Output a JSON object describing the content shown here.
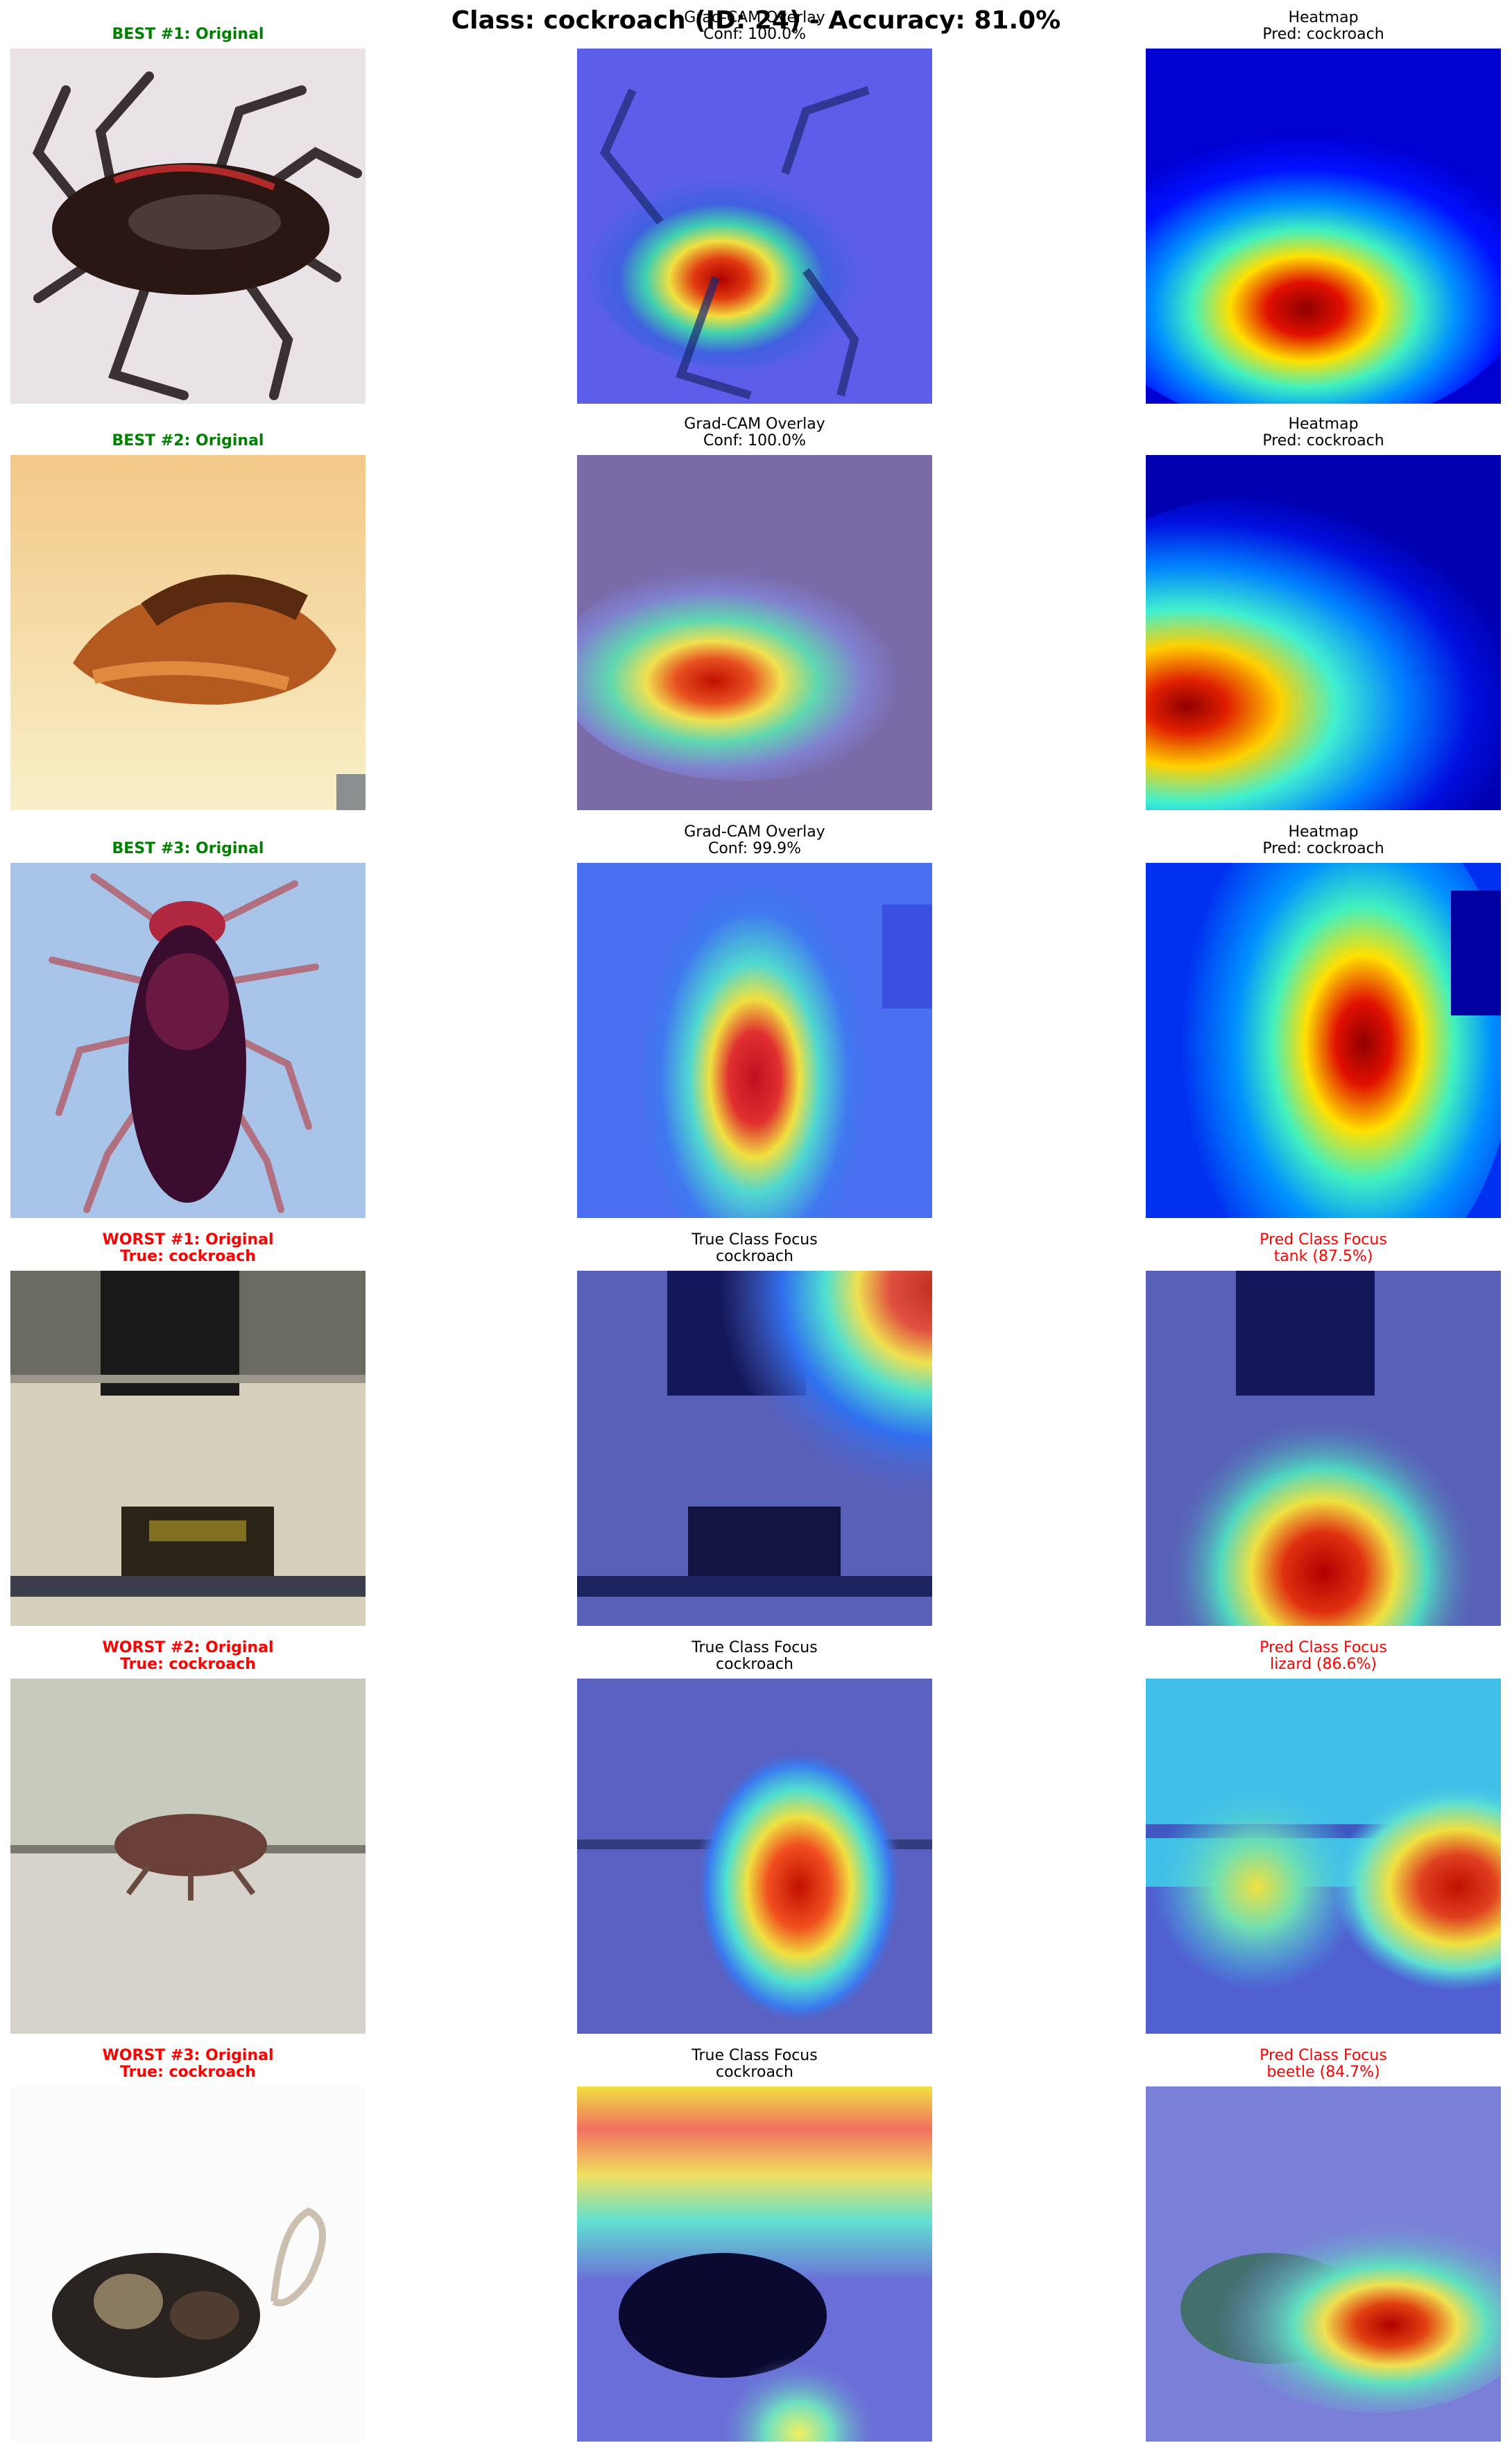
{
  "figure": {
    "title": "Class: cockroach (ID: 24) - Accuracy: 81.0%"
  },
  "rows": [
    {
      "original": {
        "title": "BEST #1: Original",
        "kind": "best"
      },
      "middle": {
        "title": "Grad-CAM Overlay\nConf: 100.0%",
        "kind": "normal"
      },
      "right": {
        "title": "Heatmap\nPred: cockroach",
        "kind": "normal"
      }
    },
    {
      "original": {
        "title": "BEST #2: Original",
        "kind": "best"
      },
      "middle": {
        "title": "Grad-CAM Overlay\nConf: 100.0%",
        "kind": "normal"
      },
      "right": {
        "title": "Heatmap\nPred: cockroach",
        "kind": "normal"
      }
    },
    {
      "original": {
        "title": "BEST #3: Original",
        "kind": "best"
      },
      "middle": {
        "title": "Grad-CAM Overlay\nConf: 99.9%",
        "kind": "normal"
      },
      "right": {
        "title": "Heatmap\nPred: cockroach",
        "kind": "normal"
      }
    },
    {
      "original": {
        "title": "WORST #1: Original\nTrue: cockroach",
        "kind": "worst"
      },
      "middle": {
        "title": "True Class Focus\ncockroach",
        "kind": "normal"
      },
      "right": {
        "title": "Pred Class Focus\ntank (87.5%)",
        "kind": "pred"
      }
    },
    {
      "original": {
        "title": "WORST #2: Original\nTrue: cockroach",
        "kind": "worst"
      },
      "middle": {
        "title": "True Class Focus\ncockroach",
        "kind": "normal"
      },
      "right": {
        "title": "Pred Class Focus\nlizard (86.6%)",
        "kind": "pred"
      }
    },
    {
      "original": {
        "title": "WORST #3: Original\nTrue: cockroach",
        "kind": "worst"
      },
      "middle": {
        "title": "True Class Focus\ncockroach",
        "kind": "normal"
      },
      "right": {
        "title": "Pred Class Focus\nbeetle (84.7%)",
        "kind": "pred"
      }
    }
  ],
  "colors": {
    "best_title": "#008000",
    "worst_title": "#ff0000",
    "pred_title": "#ff0000",
    "heatmap_low": "#00008b",
    "heatmap_high": "#8b0000"
  }
}
